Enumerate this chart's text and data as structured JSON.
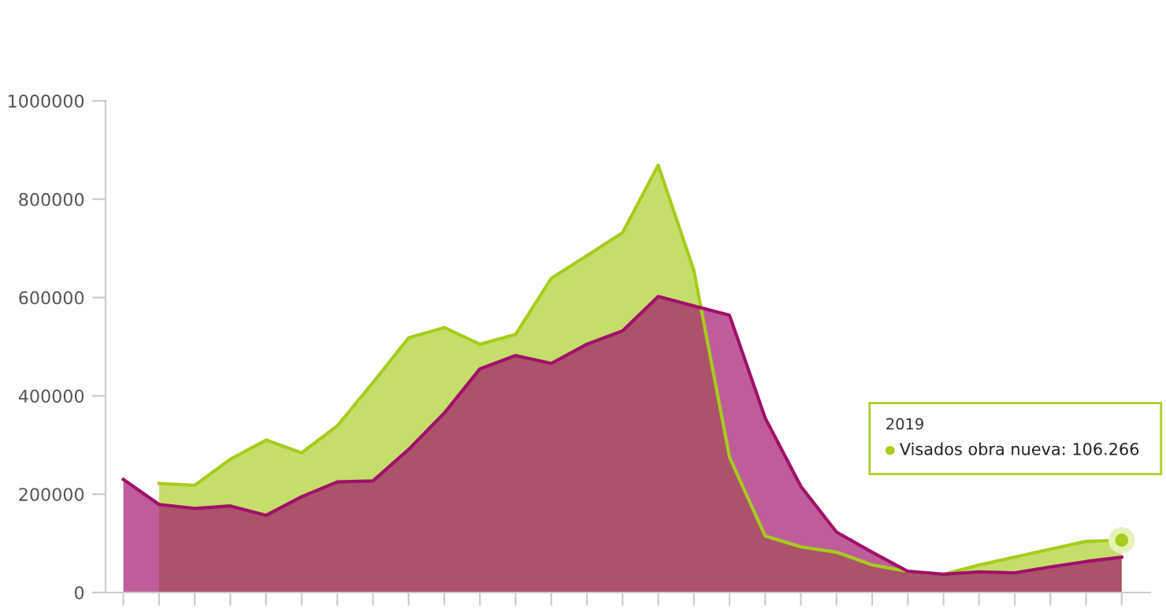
{
  "chart_data": {
    "type": "area",
    "categories": [
      null,
      null,
      null,
      null,
      null,
      null,
      null,
      null,
      null,
      null,
      null,
      null,
      null,
      null,
      null,
      null,
      null,
      null,
      null,
      null,
      null,
      null,
      null,
      null,
      null,
      null,
      null,
      null,
      null
    ],
    "series": [
      {
        "color": "#a6cc1c",
        "values": [
          null,
          222000,
          218000,
          271000,
          310000,
          284000,
          339000,
          427000,
          518000,
          539000,
          505000,
          525000,
          639000,
          685000,
          732000,
          869000,
          655000,
          275000,
          115000,
          93000,
          82000,
          56000,
          43000,
          37000,
          56000,
          72000,
          88000,
          104000,
          106266
        ]
      },
      {
        "color": "#a0106a",
        "values": [
          230000,
          179000,
          171000,
          176000,
          157000,
          195000,
          225000,
          227000,
          291000,
          365000,
          455000,
          482000,
          466000,
          505000,
          532000,
          602000,
          583000,
          564000,
          355000,
          216000,
          123000,
          82000,
          43000,
          37000,
          42000,
          40000,
          52000,
          63000,
          72000
        ]
      }
    ],
    "ylim": [
      0,
      1000000
    ],
    "yticks": [
      0,
      200000,
      400000,
      600000,
      800000,
      1000000
    ],
    "grid": false,
    "legend": false,
    "annotations": [
      "2019",
      "Visados obra nueva: 106.266"
    ]
  }
}
